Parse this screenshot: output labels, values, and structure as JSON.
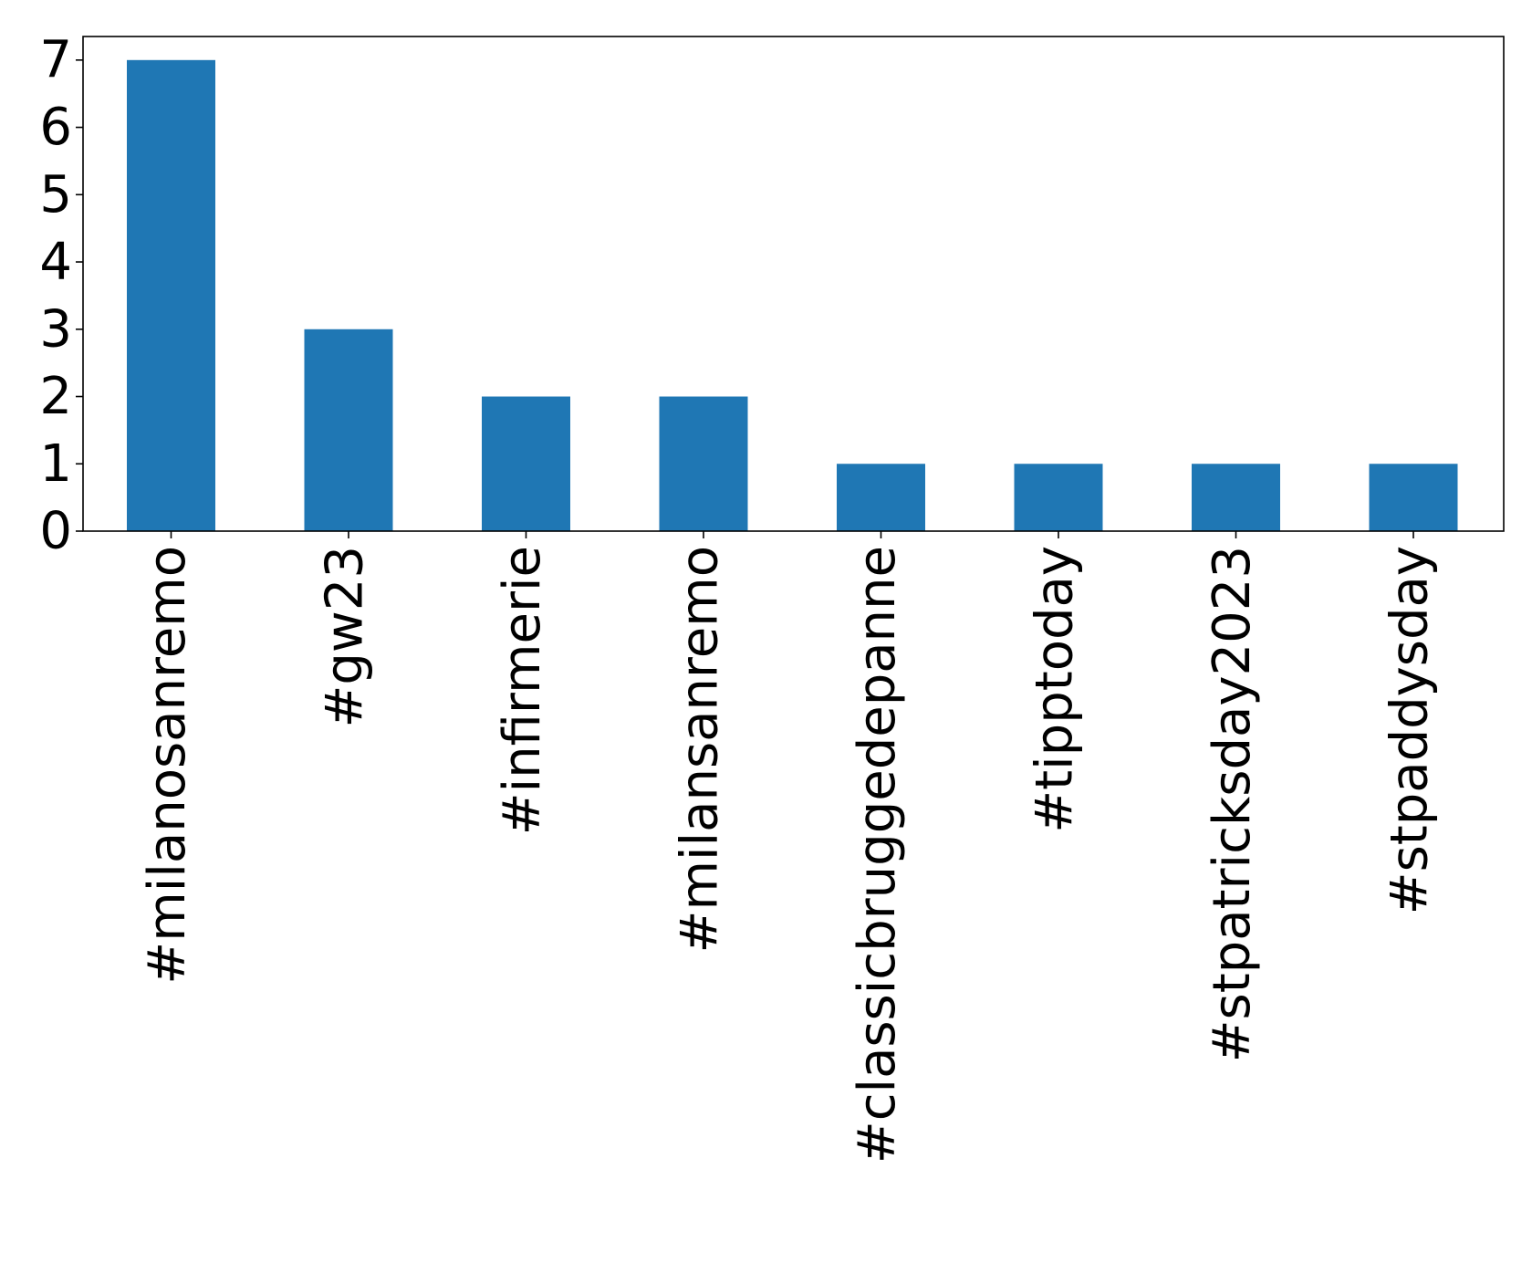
{
  "chart_data": {
    "type": "bar",
    "title": "",
    "xlabel": "",
    "ylabel": "",
    "categories": [
      "#milanosanremo",
      "#gw23",
      "#infirmerie",
      "#milansanremo",
      "#classicbruggedepanne",
      "#tipptoday",
      "#stpatricksday2023",
      "#stpaddysday"
    ],
    "values": [
      7,
      3,
      2,
      2,
      1,
      1,
      1,
      1
    ],
    "ylim": [
      0,
      7.35
    ],
    "yticks": [
      "0",
      "1",
      "2",
      "3",
      "4",
      "5",
      "6",
      "7"
    ],
    "grid": false,
    "legend": "none",
    "bar_color": "#1f77b4"
  }
}
